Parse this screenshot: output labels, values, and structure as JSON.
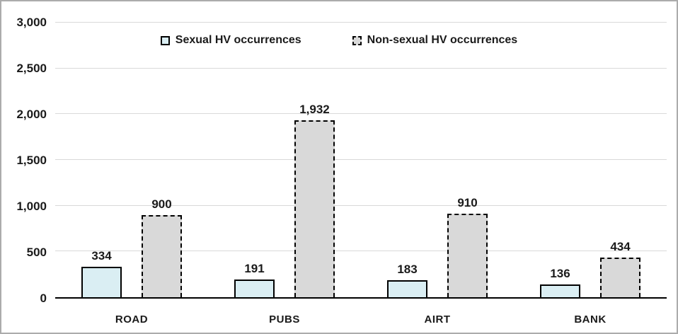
{
  "chart_data": {
    "type": "bar",
    "title": "",
    "xlabel": "",
    "ylabel": "",
    "categories": [
      "ROAD",
      "PUBS",
      "AIRT",
      "BANK"
    ],
    "series": [
      {
        "name": "Sexual HV occurrences",
        "values": [
          334,
          191,
          183,
          136
        ],
        "fill": "#daeef3",
        "border": "#000000",
        "border_style": "solid"
      },
      {
        "name": "Non-sexual HV occurrences",
        "values": [
          900,
          1932,
          910,
          434
        ],
        "fill": "#d9d9d9",
        "border": "#000000",
        "border_style": "dashed"
      }
    ],
    "ylim": [
      0,
      3000
    ],
    "ytick_interval": 500,
    "ytick_labels": [
      "0",
      "500",
      "1,000",
      "1,500",
      "2,000",
      "2,500",
      "3,000"
    ],
    "grid": true,
    "gridline_color": "#d9d9d9",
    "axis_color": "#000000",
    "frame_border_color": "#ababab",
    "data_labels": true,
    "legend_position": "top-center"
  }
}
